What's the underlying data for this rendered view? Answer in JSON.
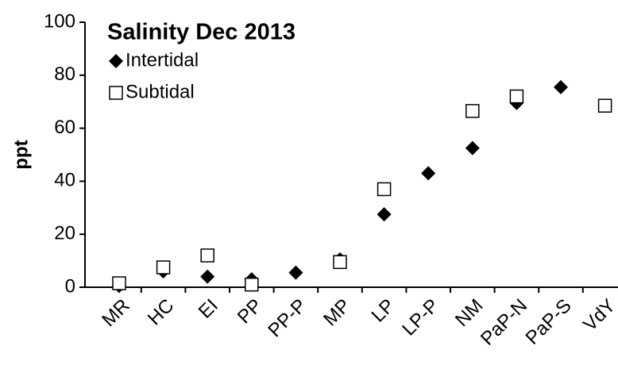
{
  "chart_data": {
    "type": "scatter",
    "title": "Salinity Dec 2013",
    "y_label": "ppt",
    "categories": [
      "MR",
      "HC",
      "EI",
      "PP",
      "PP-P",
      "MP",
      "LP",
      "LP-P",
      "NM",
      "PaP-N",
      "PaP-S",
      "VdY"
    ],
    "series": [
      {
        "name": "Intertidal",
        "color": "#000000",
        "marker": "diamond",
        "values": [
          0.5,
          6,
          4,
          3,
          5.5,
          10.5,
          27.5,
          43,
          52.5,
          69.5,
          75.5,
          68.5
        ]
      },
      {
        "name": "Subtidal",
        "color": "#000000",
        "marker": "square",
        "values": [
          1.5,
          7.5,
          12,
          1,
          null,
          9.5,
          37,
          null,
          66.5,
          72,
          null,
          68.5
        ]
      }
    ],
    "ylim": [
      0,
      100
    ],
    "yticks": [
      0,
      20,
      40,
      60,
      80,
      100
    ],
    "grid": false
  }
}
